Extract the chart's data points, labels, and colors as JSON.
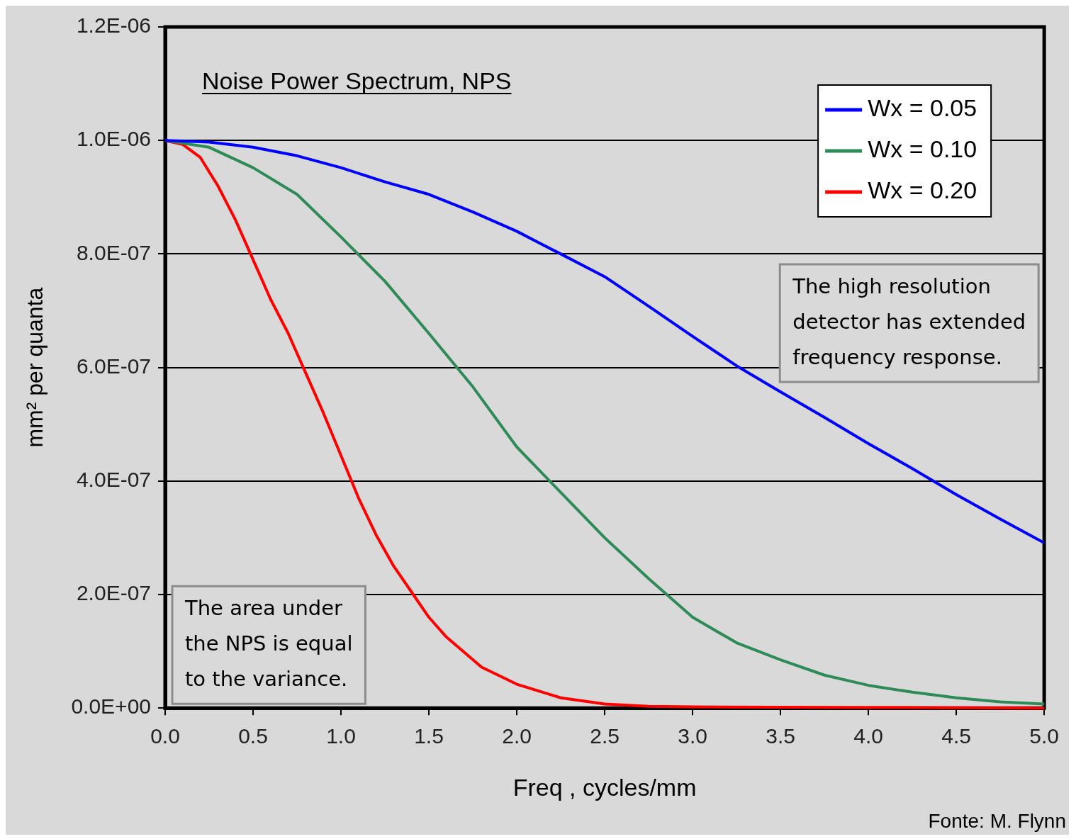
{
  "chart_data": {
    "type": "line",
    "title": "Noise Power Spectrum, NPS",
    "xlabel": "Freq , cycles/mm",
    "ylabel": "mm² per quanta",
    "xlim": [
      0,
      5
    ],
    "ylim": [
      0,
      1.2e-06
    ],
    "xticks": [
      {
        "value": 0,
        "label": "0.0"
      },
      {
        "value": 0.5,
        "label": "0.5"
      },
      {
        "value": 1,
        "label": "1.0"
      },
      {
        "value": 1.5,
        "label": "1.5"
      },
      {
        "value": 2,
        "label": "2.0"
      },
      {
        "value": 2.5,
        "label": "2.5"
      },
      {
        "value": 3,
        "label": "3.0"
      },
      {
        "value": 3.5,
        "label": "3.5"
      },
      {
        "value": 4,
        "label": "4.0"
      },
      {
        "value": 4.5,
        "label": "4.5"
      },
      {
        "value": 5,
        "label": "5.0"
      }
    ],
    "yticks": [
      {
        "value": 0,
        "label": "0.0E+00"
      },
      {
        "value": 2e-07,
        "label": "2.0E-07"
      },
      {
        "value": 4e-07,
        "label": "4.0E-07"
      },
      {
        "value": 6e-07,
        "label": "6.0E-07"
      },
      {
        "value": 8e-07,
        "label": "8.0E-07"
      },
      {
        "value": 1e-06,
        "label": "1.0E-06"
      },
      {
        "value": 1.2e-06,
        "label": "1.2E-06"
      }
    ],
    "grid": "y",
    "legend": "top right",
    "marker": "none",
    "line_style": "solid",
    "series": [
      {
        "name": "Wx = 0.05",
        "color": "#0000ff",
        "x": [
          0,
          0.25,
          0.5,
          0.75,
          1,
          1.25,
          1.5,
          1.75,
          2,
          2.25,
          2.5,
          2.75,
          3,
          3.25,
          3.5,
          3.75,
          4,
          4.25,
          4.5,
          4.75,
          5
        ],
        "values": [
          1e-06,
          9.97e-07,
          9.88e-07,
          9.73e-07,
          9.52e-07,
          9.27e-07,
          9.05e-07,
          8.74e-07,
          8.4e-07,
          8e-07,
          7.6e-07,
          7.08e-07,
          6.55e-07,
          6.03e-07,
          5.57e-07,
          5.12e-07,
          4.66e-07,
          4.22e-07,
          3.76e-07,
          3.33e-07,
          2.91e-07
        ]
      },
      {
        "name": "Wx = 0.10",
        "color": "#2e8b57",
        "x": [
          0,
          0.25,
          0.5,
          0.75,
          1,
          1.25,
          1.5,
          1.75,
          2,
          2.25,
          2.5,
          2.75,
          3,
          3.25,
          3.5,
          3.75,
          4,
          4.25,
          4.5,
          4.75,
          5
        ],
        "values": [
          1e-06,
          9.88e-07,
          9.52e-07,
          9.05e-07,
          8.3e-07,
          7.52e-07,
          6.6e-07,
          5.66e-07,
          4.6e-07,
          3.8e-07,
          3e-07,
          2.28e-07,
          1.6e-07,
          1.15e-07,
          8.5e-08,
          5.8e-08,
          4e-08,
          2.8e-08,
          1.8e-08,
          1.1e-08,
          7e-09
        ]
      },
      {
        "name": "Wx = 0.20",
        "color": "#ff0000",
        "x": [
          0,
          0.1,
          0.2,
          0.3,
          0.4,
          0.5,
          0.6,
          0.7,
          0.8,
          0.9,
          1,
          1.1,
          1.2,
          1.3,
          1.4,
          1.5,
          1.6,
          1.8,
          2,
          2.25,
          2.5,
          2.75,
          3,
          4,
          5
        ],
        "values": [
          1e-06,
          9.93e-07,
          9.7e-07,
          9.2e-07,
          8.6e-07,
          7.9e-07,
          7.2e-07,
          6.6e-07,
          5.9e-07,
          5.2e-07,
          4.45e-07,
          3.7e-07,
          3.05e-07,
          2.5e-07,
          2.05e-07,
          1.6e-07,
          1.25e-07,
          7.2e-08,
          4.2e-08,
          1.8e-08,
          7e-09,
          3e-09,
          2e-09,
          1e-09,
          0
        ]
      }
    ],
    "annotations": [
      "The high resolution detector has extended frequency response.",
      "The area under the NPS is equal to the variance.",
      "Fonte: M. Flynn"
    ]
  }
}
